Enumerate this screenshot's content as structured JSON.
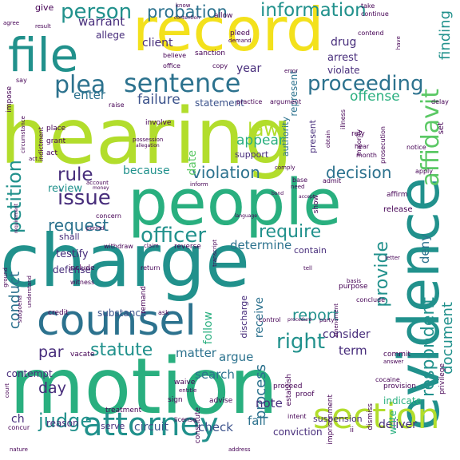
{
  "colors": {
    "background": "#ffffff",
    "yellow": "#f3e11c",
    "lime": "#b2dd2c",
    "green": "#5ac864",
    "teal_green": "#29af7f",
    "teal": "#21918c",
    "blue_teal": "#2c728e",
    "slate": "#3b528b",
    "purple": "#472d7b",
    "dark_purple": "#440154"
  },
  "words": [
    {
      "text": "hearing"
    },
    {
      "text": "charge"
    },
    {
      "text": "motion"
    },
    {
      "text": "record"
    },
    {
      "text": "people"
    },
    {
      "text": "evidence"
    },
    {
      "text": "counsel"
    },
    {
      "text": "file"
    },
    {
      "text": "section"
    },
    {
      "text": "attorney"
    },
    {
      "text": "sentence"
    },
    {
      "text": "proceeding"
    },
    {
      "text": "affidavit"
    },
    {
      "text": "plea"
    },
    {
      "text": "officer"
    },
    {
      "text": "require"
    },
    {
      "text": "person"
    },
    {
      "text": "information"
    },
    {
      "text": "issue"
    },
    {
      "text": "rule"
    },
    {
      "text": "petition"
    },
    {
      "text": "right"
    },
    {
      "text": "law"
    },
    {
      "text": "judge"
    },
    {
      "text": "respondent"
    },
    {
      "text": "provide"
    },
    {
      "text": "report"
    },
    {
      "text": "statute"
    },
    {
      "text": "violation"
    },
    {
      "text": "decision"
    },
    {
      "text": "request"
    },
    {
      "text": "conduct"
    },
    {
      "text": "probation"
    },
    {
      "text": "par"
    },
    {
      "text": "day"
    },
    {
      "text": "document"
    },
    {
      "text": "process"
    },
    {
      "text": "appear"
    },
    {
      "text": "offense"
    },
    {
      "text": "finding"
    },
    {
      "text": "enter"
    },
    {
      "text": "failure"
    },
    {
      "text": "because"
    },
    {
      "text": "review"
    },
    {
      "text": "deny"
    },
    {
      "text": "determine"
    },
    {
      "text": "receive"
    },
    {
      "text": "argue"
    },
    {
      "text": "search"
    },
    {
      "text": "consider"
    },
    {
      "text": "term"
    },
    {
      "text": "note"
    },
    {
      "text": "circuit"
    },
    {
      "text": "check"
    },
    {
      "text": "fail"
    },
    {
      "text": "matter"
    },
    {
      "text": "follow"
    },
    {
      "text": "date"
    },
    {
      "text": "warrant"
    },
    {
      "text": "client"
    },
    {
      "text": "year"
    },
    {
      "text": "drug"
    },
    {
      "text": "arrest"
    },
    {
      "text": "violate"
    },
    {
      "text": "represent"
    },
    {
      "text": "authority"
    },
    {
      "text": "present"
    },
    {
      "text": "statement"
    },
    {
      "text": "support"
    },
    {
      "text": "testify"
    },
    {
      "text": "substance"
    },
    {
      "text": "defense"
    },
    {
      "text": "contain"
    },
    {
      "text": "conviction"
    },
    {
      "text": "deliver"
    },
    {
      "text": "indicate"
    },
    {
      "text": "write"
    },
    {
      "text": "contempt"
    },
    {
      "text": "reason"
    },
    {
      "text": "serve"
    },
    {
      "text": "ch"
    },
    {
      "text": "shall"
    },
    {
      "text": "suspension"
    },
    {
      "text": "discharge"
    },
    {
      "text": "allege"
    },
    {
      "text": "give"
    },
    {
      "text": "know"
    },
    {
      "text": "allow"
    },
    {
      "text": "take"
    },
    {
      "text": "continue"
    },
    {
      "text": "contention"
    },
    {
      "text": "pleed"
    },
    {
      "text": "demand"
    },
    {
      "text": "sanction"
    },
    {
      "text": "copy"
    },
    {
      "text": "office"
    },
    {
      "text": "believe"
    },
    {
      "text": "error"
    },
    {
      "text": "contend"
    },
    {
      "text": "have"
    },
    {
      "text": "result"
    },
    {
      "text": "agree"
    },
    {
      "text": "impose"
    },
    {
      "text": "say"
    },
    {
      "text": "raise"
    },
    {
      "text": "practice"
    },
    {
      "text": "argument"
    },
    {
      "text": "delay"
    },
    {
      "text": "illness"
    },
    {
      "text": "majority"
    },
    {
      "text": "obtain"
    },
    {
      "text": "rely"
    },
    {
      "text": "hear"
    },
    {
      "text": "month"
    },
    {
      "text": "notice"
    },
    {
      "text": "set"
    },
    {
      "text": "apply"
    },
    {
      "text": "prosecution"
    },
    {
      "text": "involve"
    },
    {
      "text": "possession"
    },
    {
      "text": "allegation"
    },
    {
      "text": "indictment"
    },
    {
      "text": "place"
    },
    {
      "text": "grant"
    },
    {
      "text": "act"
    },
    {
      "text": "circumstance"
    },
    {
      "text": "requirement"
    },
    {
      "text": "money"
    },
    {
      "text": "account"
    },
    {
      "text": "inform"
    },
    {
      "text": "concern"
    },
    {
      "text": "period"
    },
    {
      "text": "comply"
    },
    {
      "text": "base"
    },
    {
      "text": "need"
    },
    {
      "text": "accept"
    },
    {
      "text": "admit"
    },
    {
      "text": "bond"
    },
    {
      "text": "show"
    },
    {
      "text": "affirm"
    },
    {
      "text": "release"
    },
    {
      "text": "language"
    },
    {
      "text": "withdraw"
    },
    {
      "text": "claim"
    },
    {
      "text": "reverse"
    },
    {
      "text": "transcript"
    },
    {
      "text": "remand"
    },
    {
      "text": "return"
    },
    {
      "text": "include"
    },
    {
      "text": "witness"
    },
    {
      "text": "subpoena"
    },
    {
      "text": "understand"
    },
    {
      "text": "ground"
    },
    {
      "text": "credit"
    },
    {
      "text": "ask"
    },
    {
      "text": "control"
    },
    {
      "text": "purpose"
    },
    {
      "text": "amendment"
    },
    {
      "text": "basis"
    },
    {
      "text": "letter"
    },
    {
      "text": "party"
    },
    {
      "text": "conclude"
    },
    {
      "text": "tell"
    },
    {
      "text": "procedure"
    },
    {
      "text": "commit"
    },
    {
      "text": "answer"
    },
    {
      "text": "dismiss"
    },
    {
      "text": "provision"
    },
    {
      "text": "establish"
    },
    {
      "text": "imprisonment"
    },
    {
      "text": "waive"
    },
    {
      "text": "entitle"
    },
    {
      "text": "proceed"
    },
    {
      "text": "sign"
    },
    {
      "text": "advise"
    },
    {
      "text": "constitute"
    },
    {
      "text": "license"
    },
    {
      "text": "treatment"
    },
    {
      "text": "intent"
    },
    {
      "text": "proof"
    },
    {
      "text": "cocaine"
    },
    {
      "text": "privilege"
    },
    {
      "text": "vacate"
    },
    {
      "text": "court"
    },
    {
      "text": "concur"
    },
    {
      "text": "nature"
    },
    {
      "text": "address"
    },
    {
      "text": "ii"
    },
    {
      "text": "act"
    }
  ]
}
